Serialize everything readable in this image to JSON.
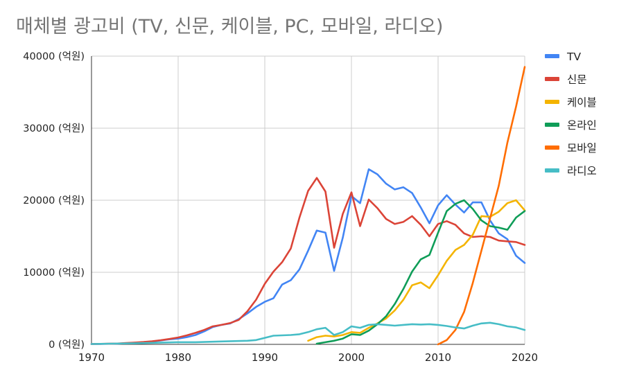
{
  "chart_data": {
    "type": "line",
    "title": "매체별 광고비 (TV, 신문, 케이블, PC, 모바일, 라디오)",
    "xlabel": "",
    "ylabel": "",
    "x_ticks": [
      "1970",
      "1980",
      "1990",
      "2000",
      "2010",
      "2020"
    ],
    "y_ticks": [
      "0 (억원)",
      "10000 (억원)",
      "20000 (억원)",
      "30000 (억원)",
      "40000 (억원)"
    ],
    "xlim": [
      1970,
      2020
    ],
    "ylim": [
      0,
      40000
    ],
    "grid": true,
    "legend_position": "right",
    "series": [
      {
        "name": "TV",
        "color": "#4285f4",
        "x": [
          1970,
          1971,
          1972,
          1973,
          1974,
          1975,
          1976,
          1977,
          1978,
          1979,
          1980,
          1981,
          1982,
          1983,
          1984,
          1985,
          1986,
          1987,
          1988,
          1989,
          1990,
          1991,
          1992,
          1993,
          1994,
          1995,
          1996,
          1997,
          1998,
          1999,
          2000,
          2001,
          2002,
          2003,
          2004,
          2005,
          2006,
          2007,
          2008,
          2009,
          2010,
          2011,
          2012,
          2013,
          2014,
          2015,
          2016,
          2017,
          2018,
          2019,
          2020
        ],
        "y": [
          50,
          60,
          80,
          100,
          150,
          220,
          300,
          400,
          550,
          700,
          800,
          1000,
          1300,
          1800,
          2400,
          2700,
          2900,
          3500,
          4300,
          5200,
          5900,
          6400,
          8300,
          8900,
          10400,
          13000,
          15800,
          15500,
          10200,
          14800,
          20600,
          19600,
          24300,
          23600,
          22300,
          21500,
          21800,
          21000,
          19000,
          16800,
          19300,
          20700,
          19400,
          18300,
          19700,
          19700,
          17200,
          15400,
          14600,
          12300,
          11300
        ]
      },
      {
        "name": "신문",
        "color": "#db4437",
        "x": [
          1970,
          1971,
          1972,
          1973,
          1974,
          1975,
          1976,
          1977,
          1978,
          1979,
          1980,
          1981,
          1982,
          1983,
          1984,
          1985,
          1986,
          1987,
          1988,
          1989,
          1990,
          1991,
          1992,
          1993,
          1994,
          1995,
          1996,
          1997,
          1998,
          1999,
          2000,
          2001,
          2002,
          2003,
          2004,
          2005,
          2006,
          2007,
          2008,
          2009,
          2010,
          2011,
          2012,
          2013,
          2014,
          2015,
          2016,
          2017,
          2018,
          2019,
          2020
        ],
        "y": [
          50,
          70,
          90,
          120,
          180,
          250,
          330,
          430,
          580,
          750,
          950,
          1250,
          1600,
          2000,
          2500,
          2700,
          2950,
          3400,
          4600,
          6200,
          8400,
          10100,
          11400,
          13300,
          17600,
          21300,
          23100,
          21200,
          13400,
          18100,
          21100,
          16400,
          20100,
          18900,
          17400,
          16700,
          17000,
          17800,
          16600,
          15000,
          16700,
          17100,
          16600,
          15400,
          14900,
          15000,
          14900,
          14400,
          14300,
          14200,
          13800
        ]
      },
      {
        "name": "케이블",
        "color": "#f4b400",
        "x": [
          1995,
          1996,
          1997,
          1998,
          1999,
          2000,
          2001,
          2002,
          2003,
          2004,
          2005,
          2006,
          2007,
          2008,
          2009,
          2010,
          2011,
          2012,
          2013,
          2014,
          2015,
          2016,
          2017,
          2018,
          2019,
          2020
        ],
        "y": [
          500,
          1000,
          1200,
          1100,
          1300,
          1700,
          1600,
          2300,
          2900,
          3600,
          4700,
          6200,
          8200,
          8600,
          7800,
          9600,
          11600,
          13100,
          13800,
          15200,
          17800,
          17700,
          18400,
          19600,
          20000,
          18600
        ]
      },
      {
        "name": "온라인",
        "color": "#0f9d58",
        "x": [
          1996,
          1997,
          1998,
          1999,
          2000,
          2001,
          2002,
          2003,
          2004,
          2005,
          2006,
          2007,
          2008,
          2009,
          2010,
          2011,
          2012,
          2013,
          2014,
          2015,
          2016,
          2017,
          2018,
          2019,
          2020
        ],
        "y": [
          100,
          300,
          500,
          800,
          1400,
          1300,
          1900,
          2800,
          3900,
          5600,
          7700,
          10100,
          11800,
          12400,
          15500,
          18500,
          19500,
          20000,
          18800,
          17200,
          16400,
          16200,
          15900,
          17600,
          18500
        ]
      },
      {
        "name": "모바일",
        "color": "#ff6d01",
        "x": [
          2010,
          2011,
          2012,
          2013,
          2014,
          2015,
          2016,
          2017,
          2018,
          2019,
          2020
        ],
        "y": [
          0,
          600,
          2000,
          4500,
          8500,
          13000,
          17500,
          22000,
          28000,
          33000,
          38500
        ]
      },
      {
        "name": "라디오",
        "color": "#46bdc6",
        "x": [
          1970,
          1975,
          1980,
          1982,
          1985,
          1988,
          1989,
          1990,
          1991,
          1992,
          1993,
          1994,
          1995,
          1996,
          1997,
          1998,
          1999,
          2000,
          2001,
          2002,
          2003,
          2004,
          2005,
          2006,
          2007,
          2008,
          2009,
          2010,
          2011,
          2012,
          2013,
          2014,
          2015,
          2016,
          2017,
          2018,
          2019,
          2020
        ],
        "y": [
          50,
          150,
          300,
          300,
          400,
          500,
          600,
          900,
          1200,
          1250,
          1300,
          1400,
          1700,
          2100,
          2300,
          1300,
          1700,
          2500,
          2300,
          2700,
          2800,
          2700,
          2600,
          2700,
          2800,
          2750,
          2800,
          2700,
          2550,
          2350,
          2200,
          2600,
          2900,
          3000,
          2800,
          2500,
          2350,
          2000
        ]
      }
    ]
  }
}
